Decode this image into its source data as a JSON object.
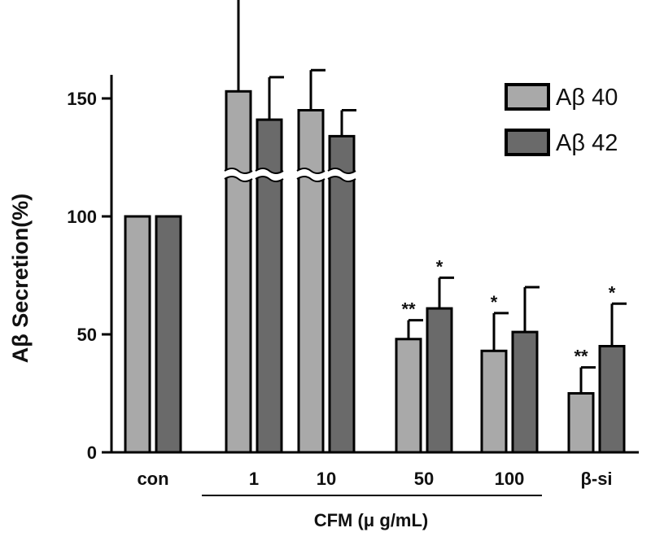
{
  "chart_data": {
    "type": "bar",
    "ylabel": "Aβ Secretion(%)",
    "xlabel": "",
    "group_label": "CFM (μ g/mL)",
    "categories": [
      "con",
      "1",
      "10",
      "50",
      "100",
      "β-si"
    ],
    "ylim": [
      0,
      160
    ],
    "yticks": [
      0,
      50,
      100,
      150
    ],
    "axis_break": true,
    "legend_position": "top-right",
    "series": [
      {
        "name": "Aβ 40",
        "color": "#a9a9a9",
        "values": [
          100,
          153,
          145,
          48,
          43,
          25
        ],
        "errors": [
          0,
          40,
          17,
          8,
          16,
          11
        ],
        "significance": [
          "",
          "",
          "",
          "**",
          "*",
          "**"
        ]
      },
      {
        "name": "Aβ 42",
        "color": "#6a6a6a",
        "values": [
          100,
          141,
          134,
          61,
          51,
          45
        ],
        "errors": [
          0,
          18,
          11,
          13,
          19,
          18
        ],
        "significance": [
          "",
          "",
          "",
          "*",
          "",
          "*"
        ]
      }
    ]
  }
}
